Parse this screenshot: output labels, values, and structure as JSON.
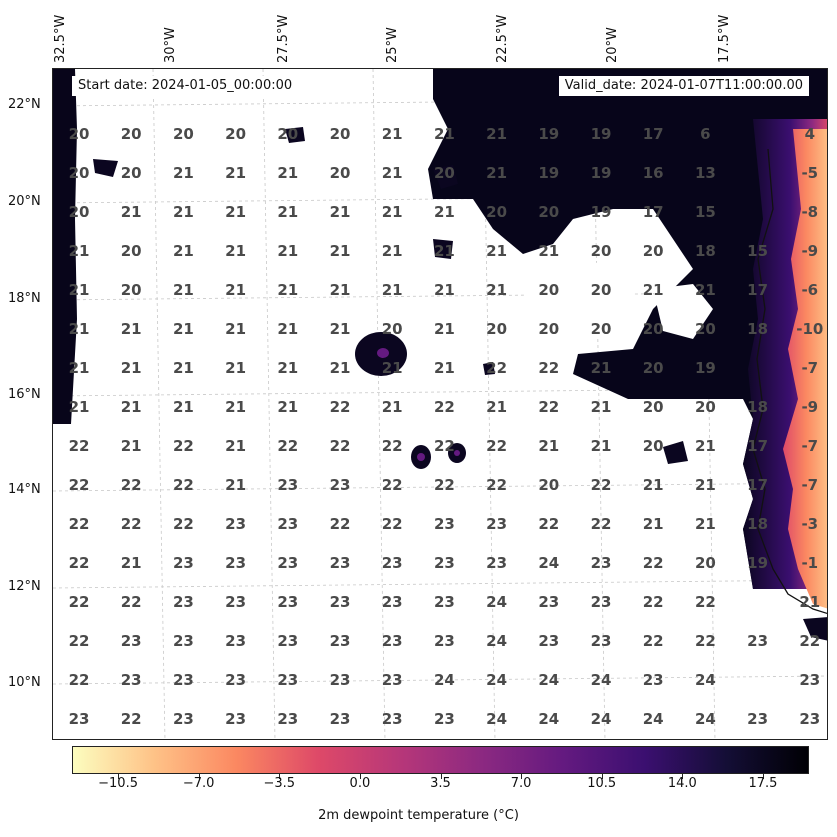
{
  "header": {
    "start_date": "Start date: 2024-01-05_00:00:00",
    "valid_date": "Valid_date: 2024-01-07T11:00:00.00"
  },
  "lon_labels": [
    "32.5°W",
    "30°W",
    "27.5°W",
    "25°W",
    "22.5°W",
    "20°W",
    "17.5°W"
  ],
  "lat_labels": [
    "22°N",
    "20°N",
    "18°N",
    "16°N",
    "14°N",
    "12°N",
    "10°N"
  ],
  "grid_values": [
    [
      "20",
      "20",
      "20",
      "20",
      "20",
      "20",
      "21",
      "21",
      "21",
      "19",
      "19",
      "17",
      "6",
      "4"
    ],
    [
      "20",
      "20",
      "21",
      "21",
      "21",
      "20",
      "21",
      "20",
      "21",
      "19",
      "19",
      "16",
      "13",
      "-5"
    ],
    [
      "20",
      "21",
      "21",
      "21",
      "21",
      "21",
      "21",
      "21",
      "20",
      "20",
      "19",
      "17",
      "15",
      "-8"
    ],
    [
      "21",
      "20",
      "21",
      "21",
      "21",
      "21",
      "21",
      "21",
      "21",
      "21",
      "20",
      "20",
      "18",
      "15",
      "-9"
    ],
    [
      "21",
      "20",
      "21",
      "21",
      "21",
      "21",
      "21",
      "21",
      "21",
      "20",
      "20",
      "21",
      "21",
      "17",
      "-6"
    ],
    [
      "21",
      "21",
      "21",
      "21",
      "21",
      "21",
      "20",
      "21",
      "20",
      "20",
      "20",
      "20",
      "20",
      "18",
      "-10"
    ],
    [
      "21",
      "21",
      "21",
      "21",
      "21",
      "21",
      "21",
      "21",
      "22",
      "22",
      "21",
      "20",
      "19",
      "-7"
    ],
    [
      "21",
      "21",
      "21",
      "21",
      "21",
      "22",
      "21",
      "22",
      "21",
      "22",
      "21",
      "20",
      "20",
      "18",
      "-9"
    ],
    [
      "22",
      "21",
      "22",
      "21",
      "22",
      "22",
      "22",
      "22",
      "22",
      "21",
      "21",
      "20",
      "21",
      "17",
      "-7"
    ],
    [
      "22",
      "22",
      "22",
      "21",
      "23",
      "23",
      "22",
      "22",
      "22",
      "20",
      "22",
      "21",
      "21",
      "17",
      "-7"
    ],
    [
      "22",
      "22",
      "22",
      "23",
      "23",
      "22",
      "22",
      "23",
      "23",
      "22",
      "22",
      "21",
      "21",
      "18",
      "-3"
    ],
    [
      "22",
      "21",
      "23",
      "23",
      "23",
      "23",
      "23",
      "23",
      "23",
      "24",
      "23",
      "22",
      "20",
      "19",
      "-1"
    ],
    [
      "22",
      "22",
      "23",
      "23",
      "23",
      "23",
      "23",
      "23",
      "24",
      "23",
      "23",
      "22",
      "22",
      "21"
    ],
    [
      "22",
      "23",
      "23",
      "23",
      "23",
      "23",
      "23",
      "23",
      "24",
      "23",
      "23",
      "22",
      "22",
      "23",
      "22"
    ],
    [
      "22",
      "23",
      "23",
      "23",
      "23",
      "23",
      "23",
      "24",
      "24",
      "24",
      "24",
      "23",
      "24",
      "23"
    ],
    [
      "23",
      "22",
      "23",
      "23",
      "23",
      "23",
      "23",
      "23",
      "24",
      "24",
      "24",
      "24",
      "24",
      "23",
      "23"
    ]
  ],
  "colorbar": {
    "label": "2m dewpoint temperature ($^\\circ$C)",
    "label_display": "2m dewpoint temperature (°C)",
    "ticks": [
      "-10.5",
      "-7.0",
      "-3.5",
      "0.0",
      "3.5",
      "7.0",
      "10.5",
      "14.0",
      "17.5"
    ],
    "vmin": -12.5,
    "vmax": 19.5,
    "colors": [
      "#fcfdbf",
      "#fec287",
      "#fb8861",
      "#de4968",
      "#b73779",
      "#8c2981",
      "#641a80",
      "#3b0f70",
      "#140e36",
      "#000004"
    ]
  }
}
